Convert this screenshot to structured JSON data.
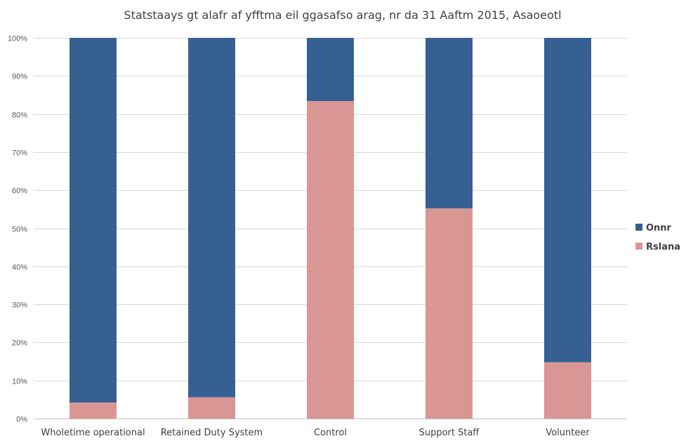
{
  "chart_data": {
    "type": "bar",
    "stacked": true,
    "title": "Statstaays gt alafr af yfftma eil ggasafso arag, nr da 31 Aaftm 2015, Asaoeotl",
    "categories": [
      "Wholetime operational",
      "Retained Duty System",
      "Control",
      "Support Staff",
      "Volunteer"
    ],
    "series": [
      {
        "name": "Rslana",
        "color": "#da9694",
        "values": [
          4.2,
          5.6,
          83.4,
          55.2,
          14.8
        ]
      },
      {
        "name": "Onnr",
        "color": "#366092",
        "values": [
          95.8,
          94.4,
          16.6,
          44.8,
          85.2
        ]
      }
    ],
    "ylim": [
      0,
      100
    ],
    "ytick_labels": [
      "0%",
      "10%",
      "20%",
      "30%",
      "40%",
      "50%",
      "60%",
      "70%",
      "80%",
      "90%",
      "100%"
    ],
    "grid": true,
    "legend_position": "right"
  }
}
